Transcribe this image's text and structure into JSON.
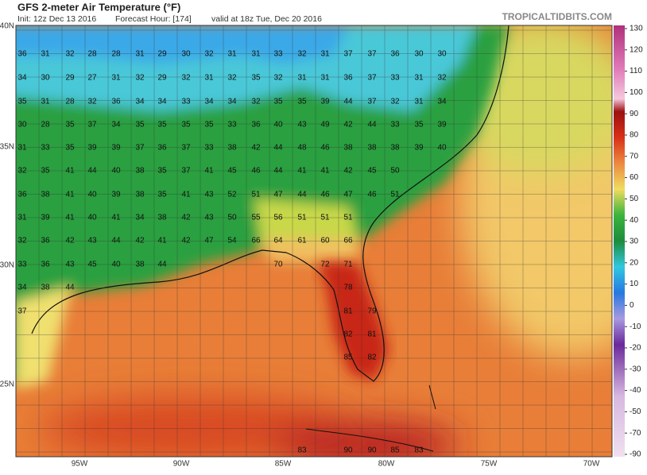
{
  "header": {
    "title": "GFS 2-meter Air Temperature (°F)",
    "init": "Init: 12z Dec 13 2016",
    "forecast_hour": "Forecast Hour: [174]",
    "valid": "valid at 18z Tue, Dec 20 2016",
    "site": "TROPICALTIDBITS.COM"
  },
  "map": {
    "lon_labels": [
      "95W",
      "90W",
      "85W",
      "80W",
      "75W",
      "70W"
    ],
    "lat_labels": [
      "40N",
      "35N",
      "30N",
      "25N"
    ],
    "temperature_rows": [
      [
        36,
        31,
        32,
        28,
        28,
        31,
        29,
        30,
        32,
        31,
        31,
        33,
        32,
        31,
        37,
        37,
        36,
        30,
        30
      ],
      [
        34,
        30,
        29,
        27,
        31,
        32,
        29,
        32,
        31,
        32,
        35,
        32,
        31,
        31,
        36,
        37,
        33,
        31,
        32
      ],
      [
        35,
        31,
        28,
        32,
        36,
        34,
        34,
        33,
        34,
        34,
        32,
        35,
        35,
        39,
        44,
        37,
        32,
        31,
        34
      ],
      [
        30,
        28,
        35,
        37,
        34,
        35,
        35,
        35,
        35,
        33,
        36,
        40,
        43,
        49,
        42,
        44,
        33,
        35,
        39
      ],
      [
        31,
        33,
        35,
        39,
        39,
        37,
        36,
        37,
        33,
        38,
        42,
        44,
        48,
        46,
        38,
        38,
        38,
        39,
        40
      ],
      [
        32,
        35,
        41,
        44,
        40,
        38,
        35,
        37,
        41,
        45,
        46,
        44,
        41,
        41,
        42,
        45,
        50
      ],
      [
        36,
        38,
        41,
        40,
        39,
        38,
        35,
        41,
        43,
        52,
        51,
        47,
        44,
        46,
        47,
        46,
        51
      ],
      [
        31,
        39,
        41,
        40,
        41,
        34,
        38,
        42,
        43,
        50,
        55,
        56,
        51,
        51,
        51
      ],
      [
        32,
        36,
        42,
        43,
        44,
        42,
        41,
        42,
        47,
        54,
        66,
        64,
        61,
        60,
        66
      ],
      [
        33,
        36,
        43,
        45,
        40,
        38,
        44,
        70,
        72,
        71
      ],
      [
        34,
        38,
        44,
        78
      ],
      [
        37,
        81,
        79
      ],
      [
        82,
        81
      ],
      [
        85,
        82
      ],
      [
        83,
        90,
        90,
        85,
        83
      ]
    ]
  },
  "colorbar": {
    "ticks": [
      130,
      120,
      110,
      100,
      90,
      80,
      70,
      60,
      50,
      40,
      30,
      20,
      10,
      0,
      -10,
      -20,
      -30,
      -40,
      -50,
      -70,
      -90
    ]
  }
}
